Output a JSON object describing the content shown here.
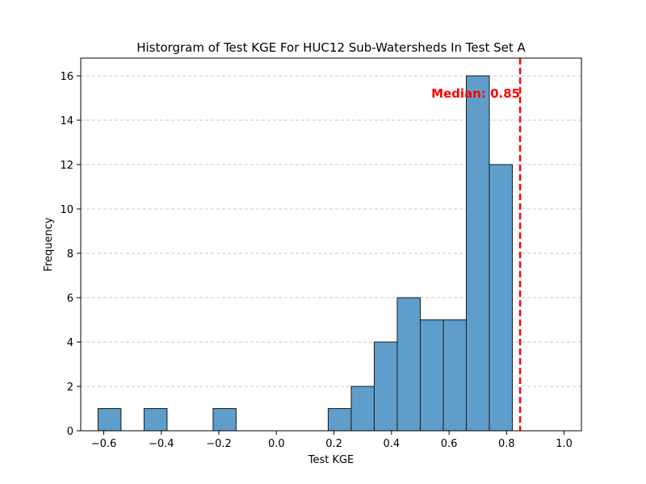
{
  "chart_data": {
    "type": "bar",
    "title": "Historgram of Test KGE For HUC12 Sub-Watersheds In Test Set A",
    "xlabel": "Test KGE",
    "ylabel": "Frequency",
    "xlim": [
      -0.68,
      1.06
    ],
    "ylim": [
      0,
      16.8
    ],
    "xticks": [
      -0.6,
      -0.4,
      -0.2,
      0.0,
      0.2,
      0.4,
      0.6,
      0.8,
      1.0
    ],
    "xtick_labels": [
      "−0.6",
      "−0.4",
      "−0.2",
      "0.0",
      "0.2",
      "0.4",
      "0.6",
      "0.8",
      "1.0"
    ],
    "yticks": [
      0,
      2,
      4,
      6,
      8,
      10,
      12,
      14,
      16
    ],
    "ytick_labels": [
      "0",
      "2",
      "4",
      "6",
      "8",
      "10",
      "12",
      "14",
      "16"
    ],
    "grid": "y",
    "bin_start": -0.62,
    "bin_width": 0.08,
    "counts": [
      1,
      0,
      1,
      0,
      0,
      1,
      0,
      0,
      0,
      0,
      1,
      2,
      4,
      6,
      5,
      5,
      16,
      12
    ],
    "bar_color": "#5f9ecb",
    "bar_edge_color": "#1a1a1a",
    "median": {
      "value": 0.847,
      "label": "Median: 0.85",
      "color": "#ff0000"
    }
  }
}
